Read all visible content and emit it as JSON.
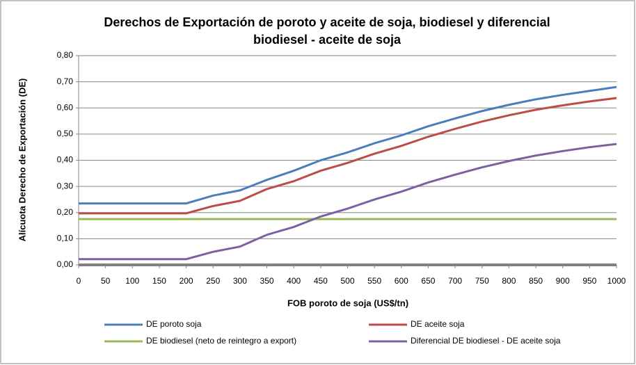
{
  "chart_data": {
    "type": "line",
    "title": [
      "Derechos de Exportación de poroto y aceite de soja, biodiesel y diferencial",
      "biodiesel - aceite de soja"
    ],
    "x_label": "FOB poroto de soja (US$/tn)",
    "y_label": "Alícuota Derecho de Exportación (DE)",
    "x": [
      0,
      50,
      100,
      150,
      200,
      250,
      300,
      350,
      400,
      450,
      500,
      550,
      600,
      650,
      700,
      750,
      800,
      850,
      900,
      950,
      1000
    ],
    "series": [
      {
        "name": "DE poroto soja",
        "color": "#4a7ebb",
        "values": [
          0.235,
          0.235,
          0.235,
          0.235,
          0.235,
          0.265,
          0.285,
          0.325,
          0.36,
          0.4,
          0.43,
          0.465,
          0.495,
          0.53,
          0.56,
          0.588,
          0.612,
          0.633,
          0.65,
          0.665,
          0.68
        ]
      },
      {
        "name": "DE aceite soja",
        "color": "#be4b48",
        "values": [
          0.197,
          0.197,
          0.197,
          0.197,
          0.197,
          0.225,
          0.245,
          0.29,
          0.32,
          0.36,
          0.39,
          0.425,
          0.455,
          0.49,
          0.52,
          0.548,
          0.572,
          0.593,
          0.61,
          0.625,
          0.638
        ]
      },
      {
        "name": "DE biodiesel (neto de reintegro a export)",
        "color": "#98b954",
        "values": [
          0.175,
          0.175,
          0.175,
          0.175,
          0.175,
          0.175,
          0.175,
          0.175,
          0.175,
          0.175,
          0.175,
          0.175,
          0.175,
          0.175,
          0.175,
          0.175,
          0.175,
          0.175,
          0.175,
          0.175,
          0.175
        ]
      },
      {
        "name": "Diferencial DE biodiesel - DE aceite soja",
        "color": "#7d60a0",
        "values": [
          0.022,
          0.022,
          0.022,
          0.022,
          0.022,
          0.05,
          0.07,
          0.115,
          0.145,
          0.185,
          0.215,
          0.25,
          0.28,
          0.315,
          0.345,
          0.373,
          0.397,
          0.418,
          0.435,
          0.45,
          0.462
        ]
      }
    ],
    "xlim": [
      0,
      1000
    ],
    "xticks": [
      0,
      50,
      100,
      150,
      200,
      250,
      300,
      350,
      400,
      450,
      500,
      550,
      600,
      650,
      700,
      750,
      800,
      850,
      900,
      950,
      1000
    ],
    "ylim": [
      0,
      0.8
    ],
    "yticks": [
      {
        "value": 0,
        "label": "0,00"
      },
      {
        "value": 0.1,
        "label": "0,10"
      },
      {
        "value": 0.2,
        "label": "0,20"
      },
      {
        "value": 0.3,
        "label": "0,30"
      },
      {
        "value": 0.4,
        "label": "0,40"
      },
      {
        "value": 0.5,
        "label": "0,50"
      },
      {
        "value": 0.6,
        "label": "0,60"
      },
      {
        "value": 0.7,
        "label": "0,70"
      },
      {
        "value": 0.8,
        "label": "0,80"
      }
    ],
    "grid": true,
    "legend": "bottom"
  }
}
